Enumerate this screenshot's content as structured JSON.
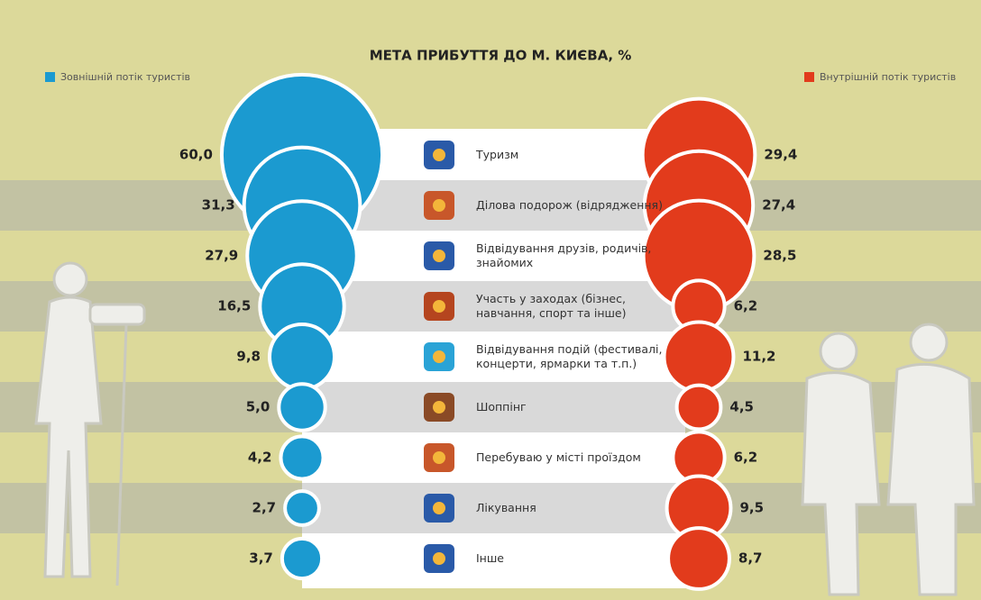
{
  "chart_data": {
    "type": "bubble",
    "title": "МЕТА ПРИБУТТЯ ДО М. КИЄВА, %",
    "categories": [
      "Туризм",
      "Ділова подорож (відрядження)",
      "Відвідування друзів, родичів, знайомих",
      "Участь у заходах (бізнес, навчання, спорт та інше)",
      "Відвідування подій (фестивалі, концерти, ярмарки та т.п.)",
      "Шоппінг",
      "Перебуваю у місті проїздом",
      "Лікування",
      "Інше"
    ],
    "series": [
      {
        "name": "Зовнішній потік туристів",
        "color": "#1b9ad0",
        "values": [
          60.0,
          31.3,
          27.9,
          16.5,
          9.8,
          5.0,
          4.2,
          2.7,
          3.7
        ],
        "value_labels": [
          "60,0",
          "31,3",
          "27,9",
          "16,5",
          "9,8",
          "5,0",
          "4,2",
          "2,7",
          "3,7"
        ]
      },
      {
        "name": "Внутрішній потік туристів",
        "color": "#e23b1c",
        "values": [
          29.4,
          27.4,
          28.5,
          6.2,
          11.2,
          4.5,
          6.2,
          9.5,
          8.7
        ],
        "value_labels": [
          "29,4",
          "27,4",
          "28,5",
          "6,2",
          "11,2",
          "4,5",
          "6,2",
          "9,5",
          "8,7"
        ]
      }
    ]
  }
}
